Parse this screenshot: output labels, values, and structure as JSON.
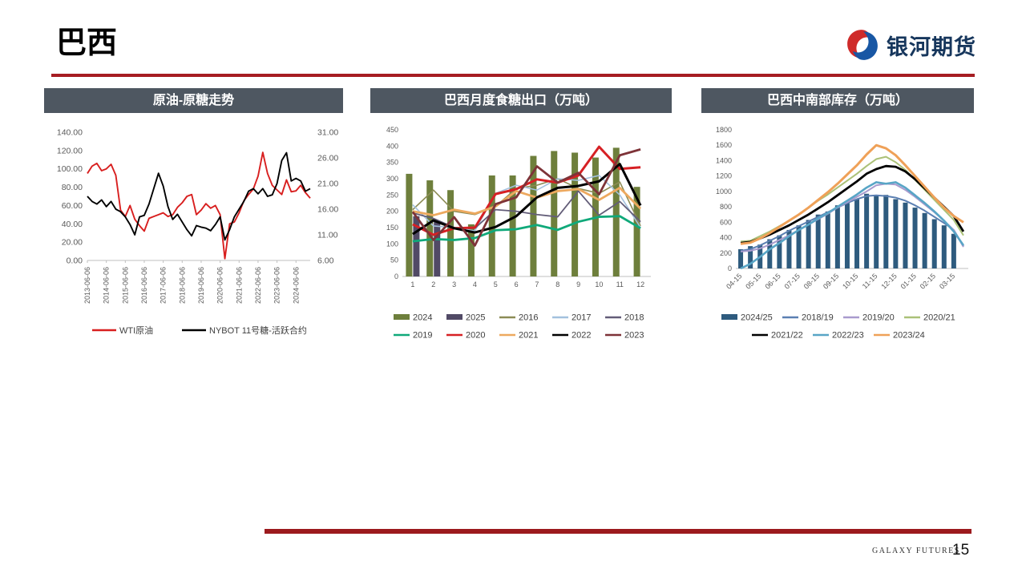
{
  "page": {
    "title": "巴西",
    "page_number": "15",
    "footer_brand": "GALAXY FUTURES"
  },
  "logo": {
    "text": "银河期货",
    "icon": "galaxy-swirl",
    "red": "#cf2b2a",
    "blue": "#1857a4"
  },
  "colors": {
    "panel_header_bg": "#4e5761",
    "title_rule": "#a61d22",
    "footer_rule": "#9c1a1e"
  },
  "chart_data": [
    {
      "type": "line",
      "title": "原油-原糖走势",
      "legend_position": "bottom",
      "grid": false,
      "x_labels": [
        "2013-06-06",
        "2014-06-06",
        "2015-06-06",
        "2016-06-06",
        "2017-06-06",
        "2018-06-06",
        "2019-06-06",
        "2020-06-06",
        "2021-06-06",
        "2022-06-06",
        "2023-06-06",
        "2024-06-06"
      ],
      "left_range": [
        0,
        140
      ],
      "right_range": [
        6,
        31
      ],
      "left_ticks": [
        "0.00",
        "20.00",
        "40.00",
        "60.00",
        "80.00",
        "100.00",
        "120.00",
        "140.00"
      ],
      "right_ticks": [
        "6.00",
        "11.00",
        "16.00",
        "21.00",
        "26.00",
        "31.00"
      ],
      "series": [
        {
          "name": "WTI原油",
          "color": "#d81f1f",
          "axis": "left",
          "values": [
            95,
            103,
            106,
            98,
            100,
            105,
            93,
            55,
            48,
            60,
            45,
            38,
            32,
            46,
            48,
            50,
            52,
            48,
            50,
            58,
            63,
            70,
            72,
            50,
            55,
            62,
            57,
            60,
            50,
            2,
            40,
            42,
            52,
            65,
            72,
            78,
            92,
            118,
            95,
            82,
            77,
            72,
            88,
            75,
            76,
            82,
            74,
            68
          ]
        },
        {
          "name": "NYBOT 11号糖-活跃合约",
          "color": "#000000",
          "axis": "right",
          "values": [
            18.5,
            17.5,
            17,
            17.8,
            16.5,
            17.5,
            16,
            15.5,
            14.5,
            13,
            11,
            14.5,
            14.8,
            17,
            20,
            23,
            20.5,
            16.5,
            14,
            15,
            13.5,
            12,
            10.8,
            12.8,
            12.5,
            12.3,
            11.8,
            13,
            14.5,
            10,
            12,
            14.5,
            16,
            17.5,
            19.5,
            20,
            19,
            20,
            18.5,
            18.8,
            21,
            25.5,
            27,
            21.5,
            22,
            21.5,
            19.5,
            20
          ]
        }
      ]
    },
    {
      "type": "bar+line",
      "title": "巴西月度食糖出口（万吨）",
      "legend_position": "bottom",
      "grid": false,
      "categories": [
        "1",
        "2",
        "3",
        "4",
        "5",
        "6",
        "7",
        "8",
        "9",
        "10",
        "11",
        "12"
      ],
      "ylim": [
        0,
        450
      ],
      "y_ticks": [
        "0",
        "50",
        "100",
        "150",
        "200",
        "250",
        "300",
        "350",
        "400",
        "450"
      ],
      "bar_series": [
        {
          "name": "2024",
          "color": "#6e7f3c",
          "values": [
            315,
            295,
            265,
            160,
            310,
            310,
            370,
            385,
            380,
            365,
            395,
            275
          ]
        },
        {
          "name": "2025",
          "color": "#514a66",
          "values": [
            185,
            170
          ]
        }
      ],
      "line_series": [
        {
          "name": "2016",
          "color": "#8c8c55",
          "values": [
            205,
            265,
            200,
            190,
            215,
            270,
            280,
            300,
            270,
            255,
            290,
            155
          ]
        },
        {
          "name": "2017",
          "color": "#a3c1de",
          "values": [
            220,
            155,
            150,
            140,
            255,
            280,
            265,
            300,
            295,
            310,
            250,
            150
          ]
        },
        {
          "name": "2018",
          "color": "#635d78",
          "values": [
            195,
            178,
            150,
            148,
            205,
            200,
            190,
            183,
            262,
            188,
            230,
            168
          ]
        },
        {
          "name": "2019",
          "color": "#10a97a",
          "values": [
            108,
            115,
            112,
            118,
            142,
            145,
            158,
            143,
            168,
            183,
            185,
            148
          ]
        },
        {
          "name": "2020",
          "color": "#d62024",
          "values": [
            160,
            128,
            148,
            150,
            253,
            268,
            298,
            288,
            310,
            398,
            330,
            335
          ]
        },
        {
          "name": "2021",
          "color": "#eda95f",
          "values": [
            200,
            188,
            205,
            193,
            215,
            262,
            242,
            262,
            268,
            235,
            272,
            208
          ]
        },
        {
          "name": "2022",
          "color": "#000000",
          "values": [
            130,
            172,
            148,
            135,
            152,
            185,
            243,
            272,
            278,
            292,
            345,
            218
          ]
        },
        {
          "name": "2023",
          "color": "#7e3338",
          "values": [
            198,
            112,
            182,
            95,
            222,
            243,
            338,
            288,
            318,
            252,
            372,
            390
          ]
        }
      ],
      "legend_rows": [
        [
          "2024",
          "2025",
          "2016",
          "2017",
          "2018"
        ],
        [
          "2019",
          "2020",
          "2021",
          "2022",
          "2023"
        ]
      ]
    },
    {
      "type": "bar+line",
      "title": "巴西中南部库存（万吨）",
      "legend_position": "bottom",
      "grid": false,
      "n_slots": 24,
      "x_labels": [
        "04-15",
        "05-15",
        "06-15",
        "07-15",
        "08-15",
        "09-15",
        "10-15",
        "11-15",
        "12-15",
        "01-15",
        "02-15",
        "03-15"
      ],
      "label_every": 2,
      "ylim": [
        0,
        1800
      ],
      "y_ticks": [
        "0",
        "200",
        "400",
        "600",
        "800",
        "1000",
        "1200",
        "1400",
        "1600",
        "1800"
      ],
      "bar_series": [
        {
          "name": "2024/25",
          "color": "#2e5b7e",
          "values": [
            250,
            290,
            310,
            380,
            430,
            500,
            560,
            630,
            700,
            740,
            820,
            850,
            900,
            970,
            950,
            955,
            900,
            855,
            790,
            720,
            640,
            560,
            450
          ]
        }
      ],
      "line_series": [
        {
          "name": "2018/19",
          "color": "#5b7fb2",
          "values": [
            230,
            250,
            300,
            360,
            420,
            490,
            550,
            610,
            670,
            730,
            790,
            850,
            900,
            940,
            950,
            940,
            920,
            880,
            820,
            750,
            670,
            590,
            500,
            290
          ]
        },
        {
          "name": "2019/20",
          "color": "#a99bce",
          "values": [
            220,
            230,
            260,
            310,
            370,
            430,
            500,
            570,
            640,
            710,
            790,
            860,
            930,
            1000,
            1080,
            1100,
            1090,
            1020,
            930,
            830,
            730,
            620,
            500,
            280
          ]
        },
        {
          "name": "2020/21",
          "color": "#abc178",
          "values": [
            350,
            360,
            420,
            480,
            550,
            620,
            700,
            790,
            880,
            960,
            1050,
            1140,
            1230,
            1330,
            1420,
            1450,
            1380,
            1280,
            1150,
            1020,
            890,
            760,
            630,
            430
          ]
        },
        {
          "name": "2021/22",
          "color": "#000000",
          "values": [
            330,
            345,
            390,
            440,
            500,
            560,
            630,
            700,
            780,
            860,
            950,
            1040,
            1130,
            1230,
            1290,
            1330,
            1320,
            1260,
            1160,
            1040,
            920,
            800,
            680,
            480
          ]
        },
        {
          "name": "2022/23",
          "color": "#58a5c6",
          "values": [
            0,
            60,
            150,
            250,
            330,
            420,
            500,
            570,
            650,
            720,
            800,
            880,
            960,
            1050,
            1120,
            1100,
            1120,
            1050,
            950,
            850,
            740,
            620,
            480,
            300
          ]
        },
        {
          "name": "2023/24",
          "color": "#efa158",
          "values": [
            320,
            335,
            390,
            460,
            540,
            620,
            700,
            790,
            890,
            990,
            1100,
            1220,
            1340,
            1480,
            1600,
            1560,
            1470,
            1340,
            1200,
            1060,
            920,
            790,
            680,
            600
          ]
        }
      ],
      "legend_rows": [
        [
          "2024/25",
          "2018/19",
          "2019/20",
          "2020/21"
        ],
        [
          "2021/22",
          "2022/23",
          "2023/24"
        ]
      ]
    }
  ]
}
